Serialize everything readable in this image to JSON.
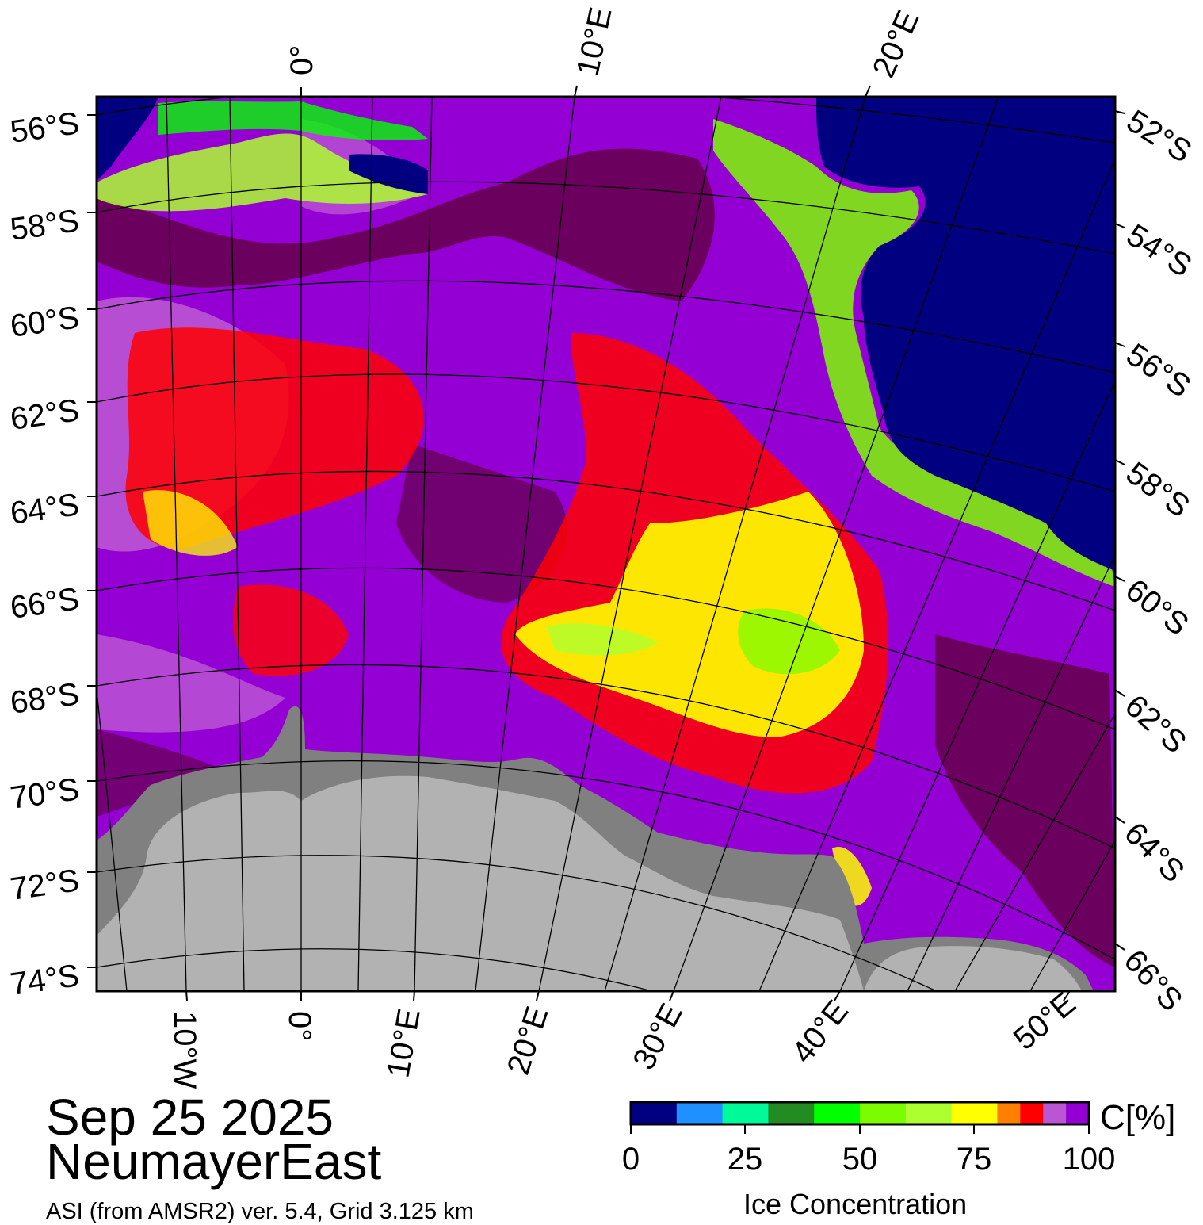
{
  "date": "Sep 25 2025",
  "region": "NeumayerEast",
  "source": "ASI (from AMSR2) ver. 5.4,  Grid 3.125 km",
  "colorbar": {
    "unit_label": "C[%]",
    "title": "Ice Concentration",
    "ticks": [
      "0",
      "25",
      "50",
      "75",
      "100"
    ],
    "colors": [
      "#000080",
      "#1e90ff",
      "#00fa9a",
      "#228b22",
      "#00ff00",
      "#7cfc00",
      "#adff2f",
      "#ffff00",
      "#ff8000",
      "#ff0000",
      "#ba55d3",
      "#9400d3"
    ]
  },
  "colors": {
    "open_water": "#000080",
    "land_ice_sheet": "#b2b2b2",
    "ice_shelf": "#808080",
    "high_concentration": "#6b005f",
    "purple": "#9400d3",
    "orchid": "#ba55d3"
  },
  "labels": {
    "left_lat": [
      "56°S",
      "58°S",
      "60°S",
      "62°S",
      "64°S",
      "66°S",
      "68°S",
      "70°S",
      "72°S",
      "74°S"
    ],
    "right_lat": [
      "52°S",
      "54°S",
      "56°S",
      "58°S",
      "60°S",
      "62°S",
      "64°S",
      "66°S"
    ],
    "top_lon": [
      "0°",
      "10°E",
      "20°E"
    ],
    "bottom_lon": [
      "10°W",
      "0°",
      "10°E",
      "20°E",
      "30°E",
      "40°E",
      "50°E"
    ]
  }
}
